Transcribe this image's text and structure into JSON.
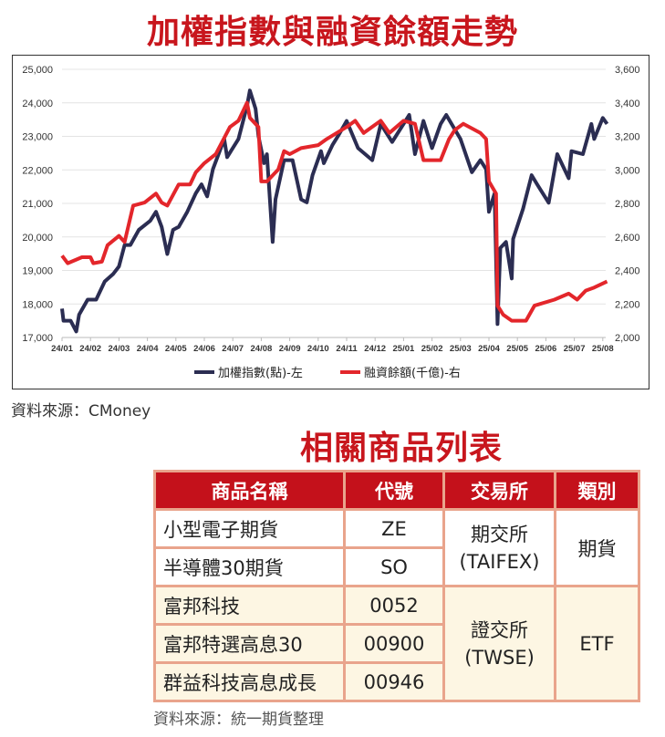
{
  "titles": {
    "chart": "加權指數與融資餘額走勢",
    "table": "相關商品列表"
  },
  "sources": {
    "chart": "資料來源：CMoney",
    "table": "資料來源：統一期貨整理"
  },
  "colors": {
    "index": "#2b2d52",
    "margin": "#e3262b",
    "header_bg": "#c4111b",
    "border": "#e9a48c",
    "cream": "#fdf6e3",
    "title": "#c8161d"
  },
  "chart_data": {
    "type": "line",
    "title": "加權指數與融資餘額走勢",
    "categories": [
      "24/01",
      "24/02",
      "24/03",
      "24/04",
      "24/05",
      "24/06",
      "24/07",
      "24/08",
      "24/09",
      "24/10",
      "24/11",
      "24/12",
      "25/01",
      "25/02",
      "25/03",
      "25/04",
      "25/05",
      "25/06",
      "25/07",
      "25/08"
    ],
    "x_unit": "months since 24/01",
    "left_axis": {
      "ticks": [
        "17,000",
        "18,000",
        "19,000",
        "20,000",
        "21,000",
        "22,000",
        "23,000",
        "24,000",
        "25,000"
      ],
      "ylim": [
        17000,
        25000
      ]
    },
    "right_axis": {
      "ticks": [
        "2,000",
        "2,200",
        "2,400",
        "2,600",
        "2,800",
        "3,000",
        "3,200",
        "3,400",
        "3,600"
      ],
      "ylim": [
        2000,
        3600
      ]
    },
    "grid": true,
    "legend_position": "bottom",
    "series": [
      {
        "name": "加權指數(點)-左",
        "axis": "left",
        "points": [
          [
            0,
            17860
          ],
          [
            0.05,
            17500
          ],
          [
            0.3,
            17500
          ],
          [
            0.5,
            17180
          ],
          [
            0.6,
            17680
          ],
          [
            0.9,
            18130
          ],
          [
            1.2,
            18130
          ],
          [
            1.5,
            18670
          ],
          [
            1.8,
            18900
          ],
          [
            2.0,
            19120
          ],
          [
            2.2,
            19760
          ],
          [
            2.4,
            19760
          ],
          [
            2.7,
            20210
          ],
          [
            3.1,
            20480
          ],
          [
            3.3,
            20750
          ],
          [
            3.5,
            20300
          ],
          [
            3.7,
            19490
          ],
          [
            3.9,
            20210
          ],
          [
            4.1,
            20300
          ],
          [
            4.4,
            20750
          ],
          [
            4.7,
            21300
          ],
          [
            4.9,
            21570
          ],
          [
            5.1,
            21210
          ],
          [
            5.3,
            22020
          ],
          [
            5.7,
            22920
          ],
          [
            5.8,
            22380
          ],
          [
            6.2,
            22920
          ],
          [
            6.5,
            23910
          ],
          [
            6.6,
            24370
          ],
          [
            6.8,
            23820
          ],
          [
            6.9,
            23010
          ],
          [
            7.1,
            22200
          ],
          [
            7.2,
            22470
          ],
          [
            7.4,
            19850
          ],
          [
            7.5,
            21120
          ],
          [
            7.8,
            22290
          ],
          [
            8.1,
            22290
          ],
          [
            8.4,
            21120
          ],
          [
            8.6,
            21030
          ],
          [
            8.8,
            21840
          ],
          [
            9.1,
            22560
          ],
          [
            9.2,
            22200
          ],
          [
            9.5,
            22740
          ],
          [
            9.7,
            23010
          ],
          [
            10.0,
            23460
          ],
          [
            10.4,
            22650
          ],
          [
            10.9,
            22290
          ],
          [
            11.2,
            23370
          ],
          [
            11.6,
            22830
          ],
          [
            12.2,
            23640
          ],
          [
            12.4,
            22470
          ],
          [
            12.7,
            23460
          ],
          [
            13.0,
            22650
          ],
          [
            13.3,
            23370
          ],
          [
            13.5,
            23640
          ],
          [
            14.0,
            22920
          ],
          [
            14.4,
            21930
          ],
          [
            14.7,
            22290
          ],
          [
            14.9,
            22020
          ],
          [
            15.0,
            20750
          ],
          [
            15.2,
            21300
          ],
          [
            15.3,
            17400
          ],
          [
            15.4,
            19670
          ],
          [
            15.6,
            19850
          ],
          [
            15.8,
            18760
          ],
          [
            15.85,
            19940
          ],
          [
            16.2,
            20840
          ],
          [
            16.5,
            21840
          ],
          [
            16.7,
            21560
          ],
          [
            17.1,
            21020
          ],
          [
            17.4,
            22470
          ],
          [
            17.8,
            21750
          ],
          [
            17.9,
            22560
          ],
          [
            18.3,
            22470
          ],
          [
            18.6,
            23370
          ],
          [
            18.7,
            22920
          ],
          [
            19.0,
            23550
          ],
          [
            19.15,
            23370
          ]
        ]
      },
      {
        "name": "融資餘額(千億)-右",
        "axis": "right",
        "points": [
          [
            0,
            2488
          ],
          [
            0.2,
            2443
          ],
          [
            0.7,
            2479
          ],
          [
            1.0,
            2479
          ],
          [
            1.1,
            2443
          ],
          [
            1.4,
            2452
          ],
          [
            1.6,
            2551
          ],
          [
            2.0,
            2606
          ],
          [
            2.2,
            2570
          ],
          [
            2.5,
            2787
          ],
          [
            2.9,
            2805
          ],
          [
            3.3,
            2859
          ],
          [
            3.5,
            2805
          ],
          [
            3.7,
            2787
          ],
          [
            4.1,
            2913
          ],
          [
            4.5,
            2913
          ],
          [
            4.7,
            2985
          ],
          [
            5.0,
            3040
          ],
          [
            5.4,
            3094
          ],
          [
            5.9,
            3256
          ],
          [
            6.2,
            3293
          ],
          [
            6.5,
            3401
          ],
          [
            6.6,
            3311
          ],
          [
            6.9,
            3256
          ],
          [
            7.0,
            2931
          ],
          [
            7.2,
            2931
          ],
          [
            7.6,
            3003
          ],
          [
            7.8,
            3112
          ],
          [
            8.0,
            3094
          ],
          [
            8.4,
            3130
          ],
          [
            9.0,
            3148
          ],
          [
            9.3,
            3184
          ],
          [
            10.0,
            3256
          ],
          [
            10.3,
            3293
          ],
          [
            10.6,
            3220
          ],
          [
            11.2,
            3293
          ],
          [
            11.5,
            3220
          ],
          [
            12.0,
            3293
          ],
          [
            12.4,
            3275
          ],
          [
            12.7,
            3058
          ],
          [
            13.3,
            3058
          ],
          [
            13.6,
            3184
          ],
          [
            13.8,
            3238
          ],
          [
            14.1,
            3275
          ],
          [
            14.7,
            3220
          ],
          [
            14.9,
            3184
          ],
          [
            15.0,
            2931
          ],
          [
            15.25,
            2859
          ],
          [
            15.3,
            2190
          ],
          [
            15.5,
            2136
          ],
          [
            15.8,
            2100
          ],
          [
            16.3,
            2100
          ],
          [
            16.6,
            2190
          ],
          [
            17.3,
            2226
          ],
          [
            17.8,
            2262
          ],
          [
            18.1,
            2226
          ],
          [
            18.4,
            2280
          ],
          [
            18.7,
            2298
          ],
          [
            19.15,
            2334
          ]
        ]
      }
    ]
  },
  "table": {
    "headers": [
      "商品名稱",
      "代號",
      "交易所",
      "類別"
    ],
    "rows": [
      {
        "name": "小型電子期貨",
        "code": "ZE"
      },
      {
        "name": "半導體30期貨",
        "code": "SO"
      },
      {
        "name": "富邦科技",
        "code": "0052"
      },
      {
        "name": "富邦特選高息30",
        "code": "00900"
      },
      {
        "name": "群益科技高息成長",
        "code": "00946"
      }
    ],
    "groups": [
      {
        "exchange": "期交所",
        "exchange_en": "(TAIFEX)",
        "category": "期貨"
      },
      {
        "exchange": "證交所",
        "exchange_en": "(TWSE)",
        "category": "ETF"
      }
    ]
  }
}
